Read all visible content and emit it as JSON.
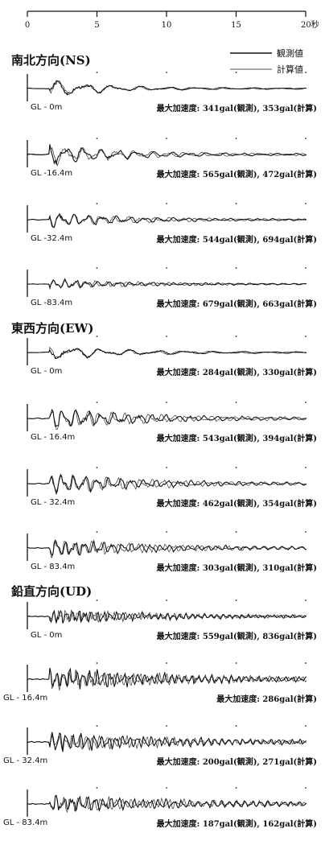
{
  "chart_data": {
    "type": "line",
    "time_axis": {
      "min": 0,
      "max": 20,
      "ticks": [
        "0",
        "5",
        "10",
        "15",
        "20秒"
      ]
    },
    "legend": [
      {
        "label": "観測値",
        "style": "thick"
      },
      {
        "label": "計算値",
        "style": "thin"
      }
    ],
    "sections": [
      {
        "title": "南北方向(NS)",
        "panels": [
          {
            "depth": "GL - 0m",
            "peak": "最大加速度: 341gal(観測), 353gal(計算)",
            "amp": 0.8,
            "freq": 1.0,
            "decay": 0.25,
            "sh": 0
          },
          {
            "depth": "GL -16.4m",
            "peak": "最大加速度: 565gal(観測), 472gal(計算)",
            "amp": 0.95,
            "freq": 1.6,
            "decay": 0.2,
            "sh": 1
          },
          {
            "depth": "GL -32.4m",
            "peak": "最大加速度: 544gal(観測), 694gal(計算)",
            "amp": 0.75,
            "freq": 2.0,
            "decay": 0.18,
            "sh": 2
          },
          {
            "depth": "GL -83.4m",
            "peak": "最大加速度: 679gal(観測), 663gal(計算)",
            "amp": 0.45,
            "freq": 2.6,
            "decay": 0.15,
            "sh": 3
          }
        ]
      },
      {
        "title": "東西方向(EW)",
        "panels": [
          {
            "depth": "GL - 0m",
            "peak": "最大加速度: 284gal(観測), 330gal(計算)",
            "amp": 0.7,
            "freq": 1.0,
            "decay": 0.2,
            "sh": 4
          },
          {
            "depth": "GL - 16.4m",
            "peak": "最大加速度: 543gal(観測), 394gal(計算)",
            "amp": 1.0,
            "freq": 2.2,
            "decay": 0.15,
            "sh": 5
          },
          {
            "depth": "GL - 32.4m",
            "peak": "最大加速度: 462gal(観測), 354gal(計算)",
            "amp": 0.9,
            "freq": 2.4,
            "decay": 0.14,
            "sh": 6
          },
          {
            "depth": "GL - 83.4m",
            "peak": "最大加速度: 303gal(観測), 310gal(計算)",
            "amp": 0.85,
            "freq": 3.0,
            "decay": 0.13,
            "sh": 7
          }
        ]
      },
      {
        "title": "鉛直方向(UD)",
        "panels": [
          {
            "depth": "GL - 0m",
            "peak": "最大加速度: 559gal(観測), 836gal(計算)",
            "amp": 0.7,
            "freq": 4.5,
            "decay": 0.12,
            "sh": 8
          },
          {
            "depth": "GL - 16.4m",
            "peak": "最大加速度: 286gal(計算)",
            "amp": 1.0,
            "freq": 4.2,
            "decay": 0.1,
            "sh": 9
          },
          {
            "depth": "GL - 32.4m",
            "peak": "最大加速度: 200gal(観測), 271gal(計算)",
            "amp": 0.9,
            "freq": 4.0,
            "decay": 0.1,
            "sh": 10
          },
          {
            "depth": "GL - 83.4m",
            "peak": "最大加速度: 187gal(観測), 162gal(計算)",
            "amp": 0.8,
            "freq": 3.6,
            "decay": 0.09,
            "sh": 11
          }
        ]
      }
    ]
  }
}
